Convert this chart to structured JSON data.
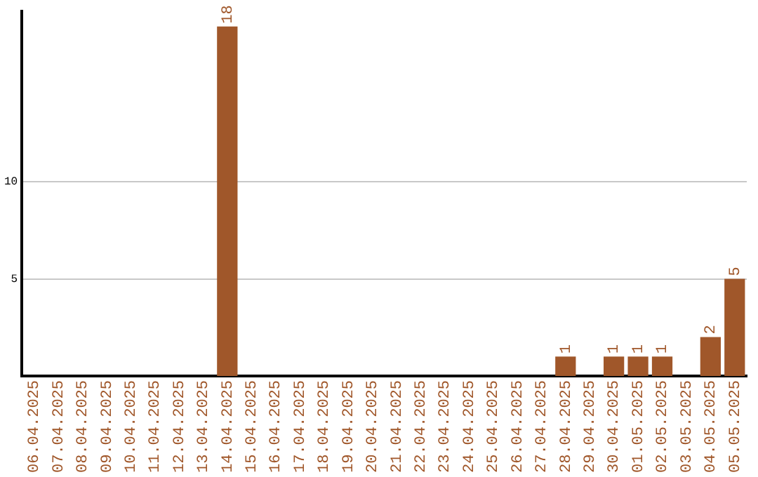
{
  "chart_data": {
    "type": "bar",
    "categories": [
      "06.04.2025",
      "07.04.2025",
      "08.04.2025",
      "09.04.2025",
      "10.04.2025",
      "11.04.2025",
      "12.04.2025",
      "13.04.2025",
      "14.04.2025",
      "15.04.2025",
      "16.04.2025",
      "17.04.2025",
      "18.04.2025",
      "19.04.2025",
      "20.04.2025",
      "21.04.2025",
      "22.04.2025",
      "23.04.2025",
      "24.04.2025",
      "25.04.2025",
      "26.04.2025",
      "27.04.2025",
      "28.04.2025",
      "29.04.2025",
      "30.04.2025",
      "01.05.2025",
      "02.05.2025",
      "03.05.2025",
      "04.05.2025",
      "05.05.2025"
    ],
    "values": [
      0,
      0,
      0,
      0,
      0,
      0,
      0,
      0,
      18,
      0,
      0,
      0,
      0,
      0,
      0,
      0,
      0,
      0,
      0,
      0,
      0,
      0,
      1,
      0,
      1,
      1,
      1,
      0,
      2,
      5
    ],
    "value_labels": [
      null,
      null,
      null,
      null,
      null,
      null,
      null,
      null,
      "18",
      null,
      null,
      null,
      null,
      null,
      null,
      null,
      null,
      null,
      null,
      null,
      null,
      null,
      "1",
      null,
      "1",
      "1",
      "1",
      null,
      "2",
      "5"
    ],
    "color": "#a0572a",
    "ylim": [
      0,
      18.8
    ],
    "yticks": [
      5,
      10
    ],
    "grid": "y"
  }
}
